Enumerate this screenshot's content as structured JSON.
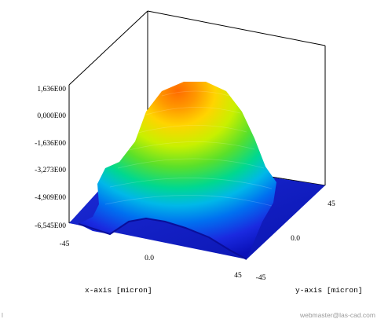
{
  "chart_data": {
    "type": "surface3d",
    "title": "",
    "xlabel": "x-axis [micron]",
    "ylabel": "y-axis [micron]",
    "x_ticks": [
      "-45",
      "0.0",
      "45"
    ],
    "y_ticks": [
      "-45",
      "0.0",
      "45"
    ],
    "z_ticks": [
      "1,636E00",
      "0,000E00",
      "-1,636E00",
      "-3,273E00",
      "-4,909E00",
      "-6,545E00"
    ],
    "x_range": [
      -45,
      45
    ],
    "y_range": [
      -45,
      45
    ],
    "z_range": [
      -6.545,
      1.636
    ],
    "surface": {
      "shape": "dome",
      "peak_value": 1.636,
      "center": [
        0,
        0
      ],
      "floor_value": -6.545,
      "colormap": "jet"
    },
    "grid": false
  },
  "footer_left": "l",
  "footer_right": "webmaster@las-cad.com"
}
